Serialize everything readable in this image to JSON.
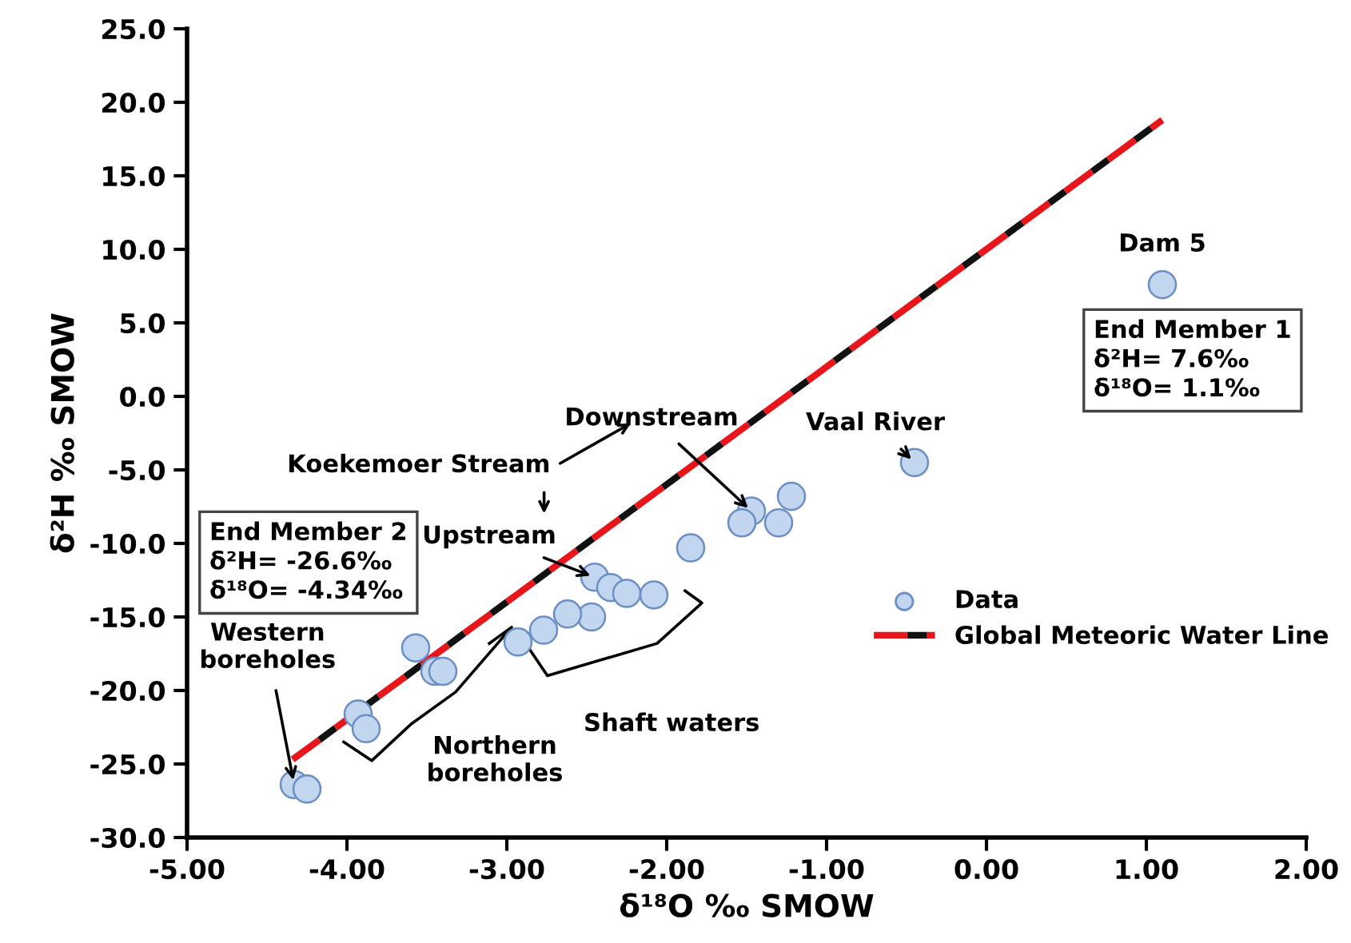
{
  "chart_data": {
    "type": "scatter",
    "xlabel": "δ¹⁸O ‰ SMOW",
    "ylabel": "δ²H ‰ SMOW",
    "xlim": [
      -5,
      2
    ],
    "ylim": [
      -30,
      25
    ],
    "xticks": [
      {
        "value": -5,
        "label": "-5.00"
      },
      {
        "value": -4,
        "label": "-4.00"
      },
      {
        "value": -3,
        "label": "-3.00"
      },
      {
        "value": -2,
        "label": "-2.00"
      },
      {
        "value": -1,
        "label": "-1.00"
      },
      {
        "value": 0,
        "label": "0.00"
      },
      {
        "value": 1,
        "label": "1.00"
      },
      {
        "value": 2,
        "label": "2.00"
      }
    ],
    "yticks": [
      {
        "value": -30,
        "label": "-30.0"
      },
      {
        "value": -25,
        "label": "-25.0"
      },
      {
        "value": -20,
        "label": "-20.0"
      },
      {
        "value": -15,
        "label": "-15.0"
      },
      {
        "value": -10,
        "label": "-10.0"
      },
      {
        "value": -5,
        "label": "-5.0"
      },
      {
        "value": 0,
        "label": "0.0"
      },
      {
        "value": 5,
        "label": "5.0"
      },
      {
        "value": 10,
        "label": "10.0"
      },
      {
        "value": 15,
        "label": "15.0"
      },
      {
        "value": 20,
        "label": "20.0"
      },
      {
        "value": 25,
        "label": "25.0"
      }
    ],
    "grid": false,
    "legend": "right",
    "marker": "circle",
    "series": [
      {
        "name": "Data",
        "color": "#c3d6f0",
        "x": [
          1.1,
          -0.45,
          -1.22,
          -1.3,
          -1.47,
          -1.53,
          -1.85,
          -2.45,
          -2.35,
          -2.25,
          -2.08,
          -2.47,
          -2.62,
          -2.77,
          -2.93,
          -3.57,
          -3.45,
          -3.4,
          -3.93,
          -3.88,
          -4.33,
          -4.25
        ],
        "values": [
          7.6,
          -4.5,
          -6.8,
          -8.6,
          -7.8,
          -8.6,
          -10.3,
          -12.3,
          -13.0,
          -13.4,
          -13.5,
          -15.0,
          -14.8,
          -15.9,
          -16.7,
          -17.1,
          -18.7,
          -18.7,
          -21.6,
          -22.6,
          -26.4,
          -26.7
        ]
      },
      {
        "name": "Global Meteoric Water Line",
        "type": "line",
        "color": "#e8161b",
        "line_style": "dashed",
        "marker": "none",
        "x": [
          -4.34,
          1.1
        ],
        "values": [
          -24.7,
          18.8
        ]
      }
    ],
    "annotations": [
      {
        "text": "Dam 5",
        "x": 1.1,
        "y": 7.6
      },
      "End Member 1\nδ²H= 7.6‰\nδ¹⁸O= 1.1‰",
      "End Member 2\nδ²H= -26.6‰\nδ¹⁸O= -4.34‰",
      {
        "text": "Downstream",
        "x": -1.47,
        "y": -7.8
      },
      {
        "text": "Vaal River",
        "x": -0.45,
        "y": -4.5
      },
      "Koekemoer Stream",
      {
        "text": "Upstream",
        "x": -2.45,
        "y": -12.3
      },
      {
        "text": "Western\nboreholes",
        "x": -4.33,
        "y": -26.4
      },
      "Northern\nboreholes",
      "Shaft waters"
    ]
  }
}
